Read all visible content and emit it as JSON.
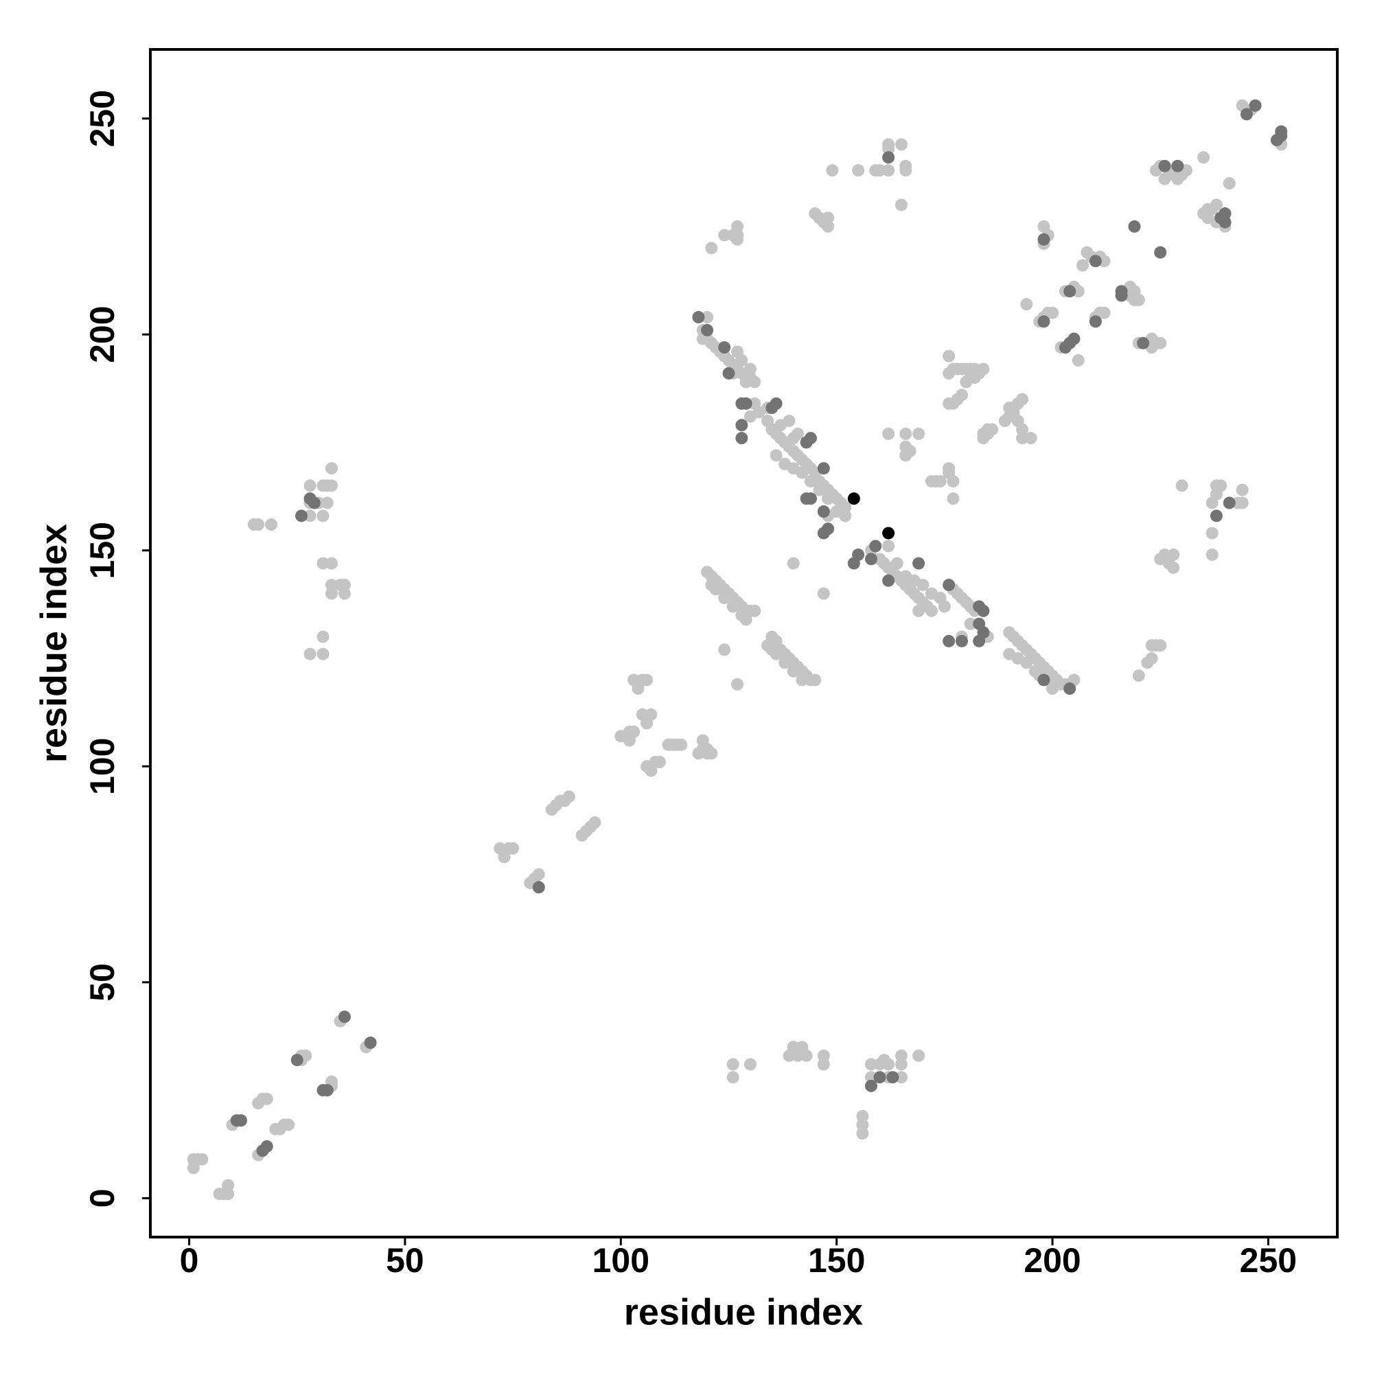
{
  "chart_data": {
    "type": "scatter",
    "xlabel": "residue index",
    "ylabel": "residue index",
    "xlim": [
      -9,
      266
    ],
    "ylim": [
      -9,
      266
    ],
    "xticks": [
      0,
      50,
      100,
      150,
      200,
      250
    ],
    "yticks": [
      0,
      50,
      100,
      150,
      200,
      250
    ],
    "series": [
      {
        "color": "#c4c4c4",
        "x": [
          1,
          2,
          1,
          3,
          7,
          8,
          9,
          9,
          10,
          16,
          17,
          18,
          16,
          20,
          21,
          23,
          22,
          26,
          27,
          26,
          33,
          33,
          35,
          41,
          15,
          16,
          19,
          28,
          31,
          28,
          28,
          30,
          31,
          32,
          33,
          32,
          33,
          31,
          33,
          33,
          33,
          35,
          36,
          36,
          31,
          28,
          31,
          126,
          126,
          130,
          139,
          140,
          142,
          141,
          143,
          147,
          147,
          156,
          156,
          156,
          158,
          158,
          160,
          161,
          162,
          162,
          165,
          165,
          165,
          169,
          72,
          73,
          74,
          75,
          73,
          79,
          80,
          81,
          85,
          86,
          87,
          88,
          84,
          91,
          92,
          93,
          94,
          100,
          101,
          102,
          103,
          102,
          103,
          104,
          105,
          106,
          104,
          105,
          106,
          107,
          106,
          106,
          107,
          108,
          109,
          107,
          111,
          112,
          113,
          114,
          119,
          120,
          119,
          120,
          121,
          118,
          124,
          127,
          140,
          147,
          120,
          121,
          122,
          123,
          124,
          125,
          126,
          127,
          128,
          129,
          130,
          131,
          121,
          122,
          124,
          126,
          128,
          129,
          134,
          135,
          136,
          137,
          138,
          139,
          140,
          141,
          142,
          143,
          144,
          145,
          136,
          138,
          140,
          142,
          135,
          119,
          120,
          119,
          120,
          121,
          122,
          123,
          124,
          125,
          126,
          127,
          128,
          129,
          130,
          131,
          126,
          127,
          128,
          130,
          129,
          131,
          134,
          130,
          132,
          134,
          135,
          136,
          137,
          138,
          139,
          140,
          141,
          142,
          143,
          144,
          145,
          146,
          147,
          148,
          149,
          150,
          151,
          152,
          137,
          139,
          140,
          141,
          148,
          150,
          152,
          151,
          136,
          138,
          140,
          142,
          144,
          146,
          148,
          158,
          160,
          161,
          162,
          163,
          164,
          165,
          166,
          167,
          168,
          169,
          170,
          171,
          172,
          162,
          164,
          166,
          168,
          169,
          170,
          172,
          174,
          175,
          177,
          178,
          179,
          180,
          181,
          182,
          179,
          181,
          185,
          190,
          191,
          192,
          193,
          194,
          195,
          196,
          197,
          198,
          199,
          200,
          201,
          202,
          200,
          197,
          199,
          203,
          205,
          190,
          192,
          194,
          196,
          172,
          173,
          174,
          177,
          176,
          177,
          176,
          166,
          166,
          167,
          166,
          169,
          162,
          176,
          177,
          178,
          179,
          176,
          177,
          176,
          178,
          179,
          180,
          181,
          182,
          181,
          180,
          182,
          183,
          184,
          184,
          185,
          186,
          184,
          185,
          190,
          191,
          192,
          193,
          190,
          191,
          192,
          193,
          193,
          195,
          189,
          198,
          199,
          200,
          197,
          194,
          198,
          199,
          198,
          202,
          206,
          203,
          205,
          206,
          210,
          211,
          212,
          207,
          208,
          209,
          211,
          212,
          217,
          218,
          219,
          219,
          220,
          218,
          220,
          223,
          224,
          225,
          223,
          222,
          223,
          224,
          225,
          220,
          223,
          225,
          226,
          227,
          228,
          228,
          230,
          237,
          237,
          237,
          238,
          238,
          239,
          243,
          244,
          244,
          224,
          225,
          227,
          228,
          229,
          230,
          231,
          226,
          235,
          236,
          237,
          238,
          240,
          238,
          236,
          235,
          241,
          244,
          246,
          253,
          121,
          124,
          126,
          127,
          127,
          127,
          145,
          146,
          147,
          148,
          148,
          149,
          155,
          159,
          160,
          162,
          162,
          162,
          165,
          166,
          166,
          165
        ],
        "y": [
          7,
          9,
          9,
          9,
          1,
          1,
          1,
          3,
          17,
          10,
          23,
          23,
          22,
          16,
          16,
          17,
          17,
          33,
          33,
          32,
          26,
          27,
          41,
          35,
          156,
          156,
          156,
          158,
          158,
          161,
          165,
          161,
          165,
          165,
          165,
          161,
          169,
          147,
          147,
          142,
          140,
          142,
          140,
          142,
          130,
          126,
          126,
          28,
          31,
          31,
          33,
          35,
          35,
          33,
          33,
          33,
          31,
          15,
          17,
          19,
          31,
          28,
          31,
          32,
          31,
          28,
          28,
          33,
          31,
          33,
          81,
          80,
          81,
          81,
          79,
          73,
          74,
          75,
          91,
          92,
          92,
          93,
          90,
          84,
          85,
          86,
          87,
          107,
          107,
          108,
          108,
          106,
          120,
          119,
          120,
          120,
          118,
          112,
          111,
          112,
          110,
          100,
          100,
          101,
          101,
          99,
          105,
          105,
          105,
          105,
          104,
          104,
          106,
          103,
          103,
          103,
          127,
          119,
          147,
          140,
          145,
          144,
          143,
          142,
          141,
          140,
          139,
          138,
          137,
          136,
          136,
          136,
          142,
          141,
          139,
          137,
          135,
          134,
          128,
          130,
          129,
          127,
          126,
          125,
          124,
          123,
          122,
          121,
          120,
          120,
          126,
          124,
          122,
          120,
          127,
          201,
          204,
          199,
          199,
          198,
          197,
          196,
          195,
          194,
          193,
          192,
          191,
          190,
          190,
          189,
          191,
          196,
          194,
          192,
          189,
          184,
          183,
          181,
          182,
          180,
          178,
          177,
          176,
          175,
          174,
          173,
          172,
          171,
          170,
          169,
          168,
          166,
          165,
          164,
          163,
          162,
          161,
          160,
          179,
          180,
          176,
          177,
          158,
          159,
          158,
          160,
          172,
          170,
          169,
          168,
          166,
          164,
          162,
          150,
          148,
          147,
          146,
          145,
          144,
          143,
          142,
          141,
          140,
          139,
          138,
          137,
          136,
          151,
          147,
          144,
          143,
          136,
          142,
          140,
          139,
          137,
          141,
          140,
          139,
          138,
          137,
          136,
          130,
          133,
          130,
          131,
          130,
          129,
          128,
          127,
          126,
          125,
          124,
          123,
          122,
          121,
          120,
          119,
          118,
          121,
          120,
          119,
          120,
          126,
          125,
          124,
          122,
          166,
          166,
          166,
          166,
          168,
          162,
          169,
          172,
          174,
          173,
          177,
          177,
          177,
          184,
          184,
          185,
          186,
          191,
          192,
          195,
          192,
          192,
          192,
          192,
          192,
          190,
          189,
          190,
          191,
          192,
          177,
          177,
          178,
          176,
          178,
          183,
          183,
          184,
          185,
          181,
          182,
          180,
          178,
          176,
          176,
          180,
          204,
          205,
          205,
          203,
          207,
          221,
          223,
          225,
          197,
          194,
          210,
          211,
          210,
          204,
          205,
          205,
          216,
          219,
          218,
          218,
          217,
          210,
          211,
          210,
          208,
          208,
          209,
          198,
          197,
          198,
          198,
          199,
          124,
          128,
          128,
          128,
          121,
          125,
          148,
          149,
          147,
          146,
          149,
          165,
          149,
          154,
          161,
          163,
          165,
          165,
          161,
          161,
          164,
          238,
          239,
          238,
          237,
          236,
          237,
          238,
          236,
          228,
          229,
          229,
          230,
          225,
          226,
          227,
          241,
          235,
          253,
          252,
          244,
          220,
          223,
          223,
          223,
          225,
          222,
          228,
          227,
          226,
          225,
          227,
          238,
          238,
          238,
          238,
          238,
          243,
          244,
          244,
          238,
          239,
          230
        ]
      },
      {
        "color": "#737373",
        "x": [
          12,
          11,
          17,
          18,
          25,
          31,
          32,
          36,
          42,
          26,
          29,
          28,
          158,
          160,
          163,
          81,
          118,
          120,
          124,
          125,
          128,
          129,
          136,
          135,
          128,
          128,
          143,
          144,
          147,
          143,
          144,
          147,
          147,
          148,
          154,
          155,
          158,
          159,
          162,
          169,
          176,
          183,
          184,
          183,
          184,
          183,
          176,
          179,
          198,
          204,
          198,
          198,
          204,
          205,
          203,
          204,
          210,
          210,
          216,
          216,
          221,
          225,
          219,
          238,
          241,
          226,
          229,
          239,
          240,
          240,
          245,
          247,
          252,
          253,
          253,
          162
        ],
        "y": [
          18,
          18,
          11,
          12,
          32,
          25,
          25,
          42,
          36,
          158,
          161,
          162,
          26,
          28,
          28,
          72,
          204,
          201,
          197,
          191,
          184,
          184,
          184,
          183,
          179,
          176,
          175,
          176,
          169,
          162,
          162,
          159,
          154,
          155,
          147,
          149,
          148,
          151,
          143,
          147,
          142,
          137,
          136,
          133,
          131,
          129,
          129,
          129,
          120,
          118,
          203,
          222,
          198,
          199,
          197,
          210,
          203,
          217,
          210,
          209,
          198,
          219,
          225,
          158,
          161,
          239,
          239,
          227,
          226,
          228,
          251,
          253,
          245,
          246,
          247,
          241
        ]
      },
      {
        "color": "#000000",
        "x": [
          154,
          162
        ],
        "y": [
          162,
          154
        ]
      }
    ]
  }
}
